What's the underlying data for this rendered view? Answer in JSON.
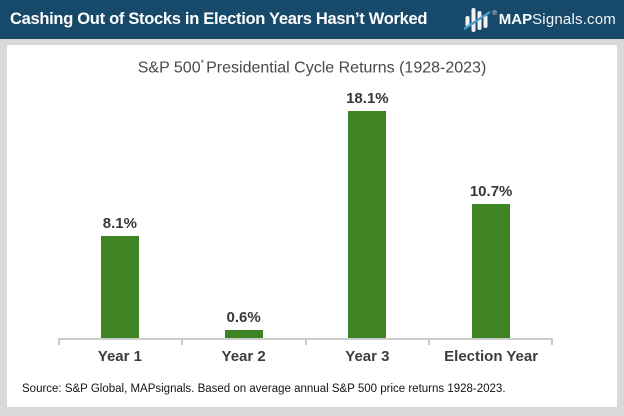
{
  "header": {
    "title": "Cashing Out of Stocks in Election Years Hasn’t Worked",
    "bg_color": "#17496b",
    "brand": {
      "registered_mark": "®",
      "name_bold": "MAP",
      "name_rest": "Signals.com",
      "icon": "candlestick-bars-with-trend-line",
      "icon_bar_color": "#f2f2f2",
      "icon_line_color": "#4b9cc2"
    }
  },
  "chart_data": {
    "type": "bar",
    "title": "S&P 500* Presidential Cycle Returns (1928-2023)",
    "title_parts": {
      "pre": "S&P 500",
      "sup": "*",
      "post": "Presidential Cycle Returns (1928-2023)"
    },
    "categories": [
      "Year 1",
      "Year 2",
      "Year 3",
      "Election Year"
    ],
    "values": [
      8.1,
      0.6,
      18.1,
      10.7
    ],
    "value_labels": [
      "8.1%",
      "0.6%",
      "18.1%",
      "10.7%"
    ],
    "xlabel": "",
    "ylabel": "",
    "ylim": [
      0,
      19.5
    ],
    "grid": false,
    "legend": false,
    "bar_color": "#3e8424",
    "axis_color": "#cbcbcb",
    "baseline_only": true
  },
  "footer": {
    "source": "Source: S&P Global, MAPsignals. Based on average annual S&P 500 price returns 1928-2023."
  },
  "colors": {
    "page_background": "#d9d9d9",
    "panel_background": "#ffffff",
    "header_background": "#17496b",
    "bar_green": "#3e8424",
    "logo_accent": "#4b9cc2"
  }
}
